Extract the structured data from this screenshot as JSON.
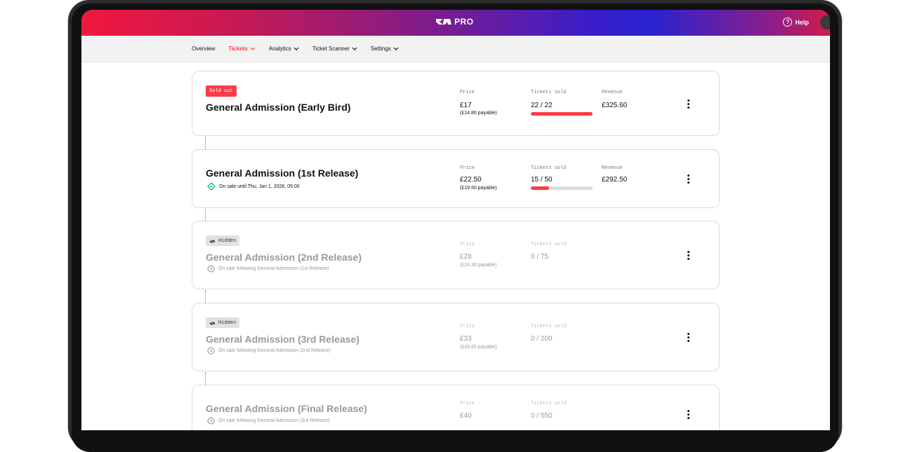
{
  "header": {
    "logo_text": "PRO",
    "help_label": "Help",
    "gradient_colors": [
      "#f0183f",
      "#7a1d8f",
      "#2a22cf",
      "#d41a4a"
    ]
  },
  "nav": {
    "items": [
      {
        "label": "Overview",
        "has_dropdown": false
      },
      {
        "label": "Tickets",
        "has_dropdown": true,
        "active": true
      },
      {
        "label": "Analytics",
        "has_dropdown": true
      },
      {
        "label": "Ticket Scanner",
        "has_dropdown": true
      },
      {
        "label": "Settings",
        "has_dropdown": true
      }
    ]
  },
  "labels": {
    "price": "Price",
    "tickets_sold": "Tickets sold",
    "revenue": "Revenue"
  },
  "accent_color": "#ff3b47",
  "tickets": [
    {
      "badge": "Sold out",
      "title": "General Admission (Early Bird)",
      "price": "£17",
      "payable": "(£14.80 payable)",
      "sold": "22 / 22",
      "sold_fraction": 1.0,
      "revenue": "£325.60"
    },
    {
      "title": "General Admission (1st Release)",
      "status": "On sale until Thu, Jan 1, 2026, 05:00",
      "status_icon": "tag-icon",
      "price": "£22.50",
      "payable": "(£19.50 payable)",
      "sold": "15 / 50",
      "sold_fraction": 0.3,
      "revenue": "£292.50"
    },
    {
      "badge": "Hidden",
      "title": "General Admission (2nd Release)",
      "status": "On sale following General Admission (1st Release)",
      "status_icon": "clock-icon",
      "price": "£28",
      "payable": "(£24.30 payable)",
      "sold": "0 / 75"
    },
    {
      "badge": "Hidden",
      "title": "General Admission (3rd Release)",
      "status": "On sale following General Admission (2nd Release)",
      "status_icon": "clock-icon",
      "price": "£33",
      "payable": "(£28.60 payable)",
      "sold": "0 / 200"
    },
    {
      "title": "General Admission (Final Release)",
      "status": "On sale following General Admission (3rd Release)",
      "status_icon": "clock-icon",
      "price": "£40",
      "sold": "0 / 550"
    }
  ]
}
